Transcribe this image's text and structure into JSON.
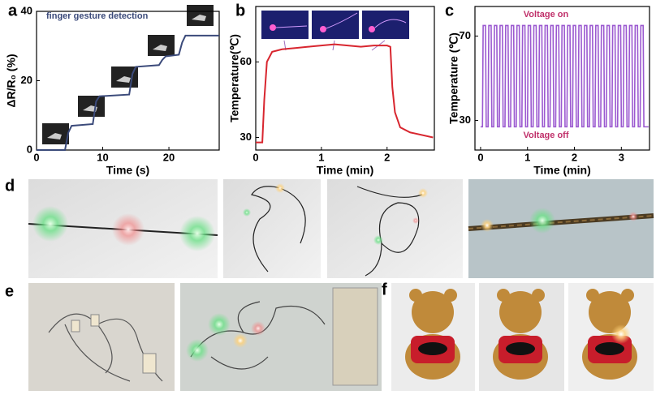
{
  "panel_labels": [
    "a",
    "b",
    "c",
    "d",
    "e",
    "f"
  ],
  "chart_data": [
    {
      "type": "line",
      "xlabel": "Time (s)",
      "ylabel": "ΔR/R₀ (%)",
      "annotation": "finger gesture detection",
      "color": "#3b4a7a",
      "x": [
        0,
        4.3,
        4.8,
        5.3,
        8.5,
        9,
        9.5,
        14,
        14.5,
        15,
        18.5,
        19,
        19.5,
        21.5,
        22,
        22.5,
        27.6
      ],
      "values": [
        0,
        0,
        5,
        7,
        7.5,
        14,
        15.5,
        16,
        22,
        24,
        24.5,
        26,
        27,
        27.5,
        31,
        33,
        33
      ],
      "xlim": [
        0,
        27.6
      ],
      "ylim": [
        0,
        40
      ],
      "xticks": [
        0,
        10,
        20
      ],
      "yticks": [
        0,
        20,
        40
      ]
    },
    {
      "type": "line",
      "xlabel": "Time (min)",
      "ylabel": "Temperature(℃)",
      "color": "#d8262f",
      "x": [
        0,
        0.1,
        0.13,
        0.17,
        0.25,
        0.4,
        0.6,
        0.8,
        1,
        1.2,
        1.4,
        1.6,
        1.8,
        2,
        2.05,
        2.08,
        2.12,
        2.2,
        2.35,
        2.7
      ],
      "values": [
        28,
        28,
        45,
        60,
        64,
        65,
        65.5,
        66,
        66.5,
        67,
        66.5,
        66,
        66.5,
        66.5,
        66,
        50,
        40,
        34,
        32,
        30
      ],
      "xlim": [
        0,
        2.72
      ],
      "ylim": [
        25,
        82
      ],
      "xticks": [
        0,
        1,
        2
      ],
      "yticks": [
        30,
        60
      ]
    },
    {
      "type": "line",
      "xlabel": "Time (min)",
      "ylabel": "Temperature (℃)",
      "annotations": [
        "Voltage on",
        "Voltage off"
      ],
      "color": "#9b59d0",
      "x": [
        0,
        0.04,
        0.055,
        0.105,
        0.12,
        0.16,
        0.175,
        0.225,
        0.24,
        0.28,
        0.295,
        0.345,
        0.36,
        0.4,
        0.415,
        0.465,
        0.48,
        0.52,
        0.535,
        0.585,
        0.6,
        0.64,
        0.655,
        0.705,
        0.72,
        0.76,
        0.775,
        0.825,
        0.84,
        0.88,
        0.895,
        0.945,
        0.96,
        1,
        1.015,
        1.065,
        1.08,
        1.12,
        1.135,
        1.185,
        1.2,
        1.24,
        1.255,
        1.305,
        1.32,
        1.36,
        1.375,
        1.425,
        1.44,
        1.48,
        1.495,
        1.545,
        1.56,
        1.6,
        1.615,
        1.665,
        1.68,
        1.72,
        1.735,
        1.785,
        1.8,
        1.84,
        1.855,
        1.905,
        1.92,
        1.96,
        1.975,
        2.025,
        2.04,
        2.08,
        2.095,
        2.145,
        2.16,
        2.2,
        2.215,
        2.265,
        2.28,
        2.32,
        2.335,
        2.385,
        2.4,
        2.44,
        2.455,
        2.505,
        2.52,
        2.56,
        2.575,
        2.625,
        2.64,
        2.68,
        2.695,
        2.745,
        2.76,
        2.8,
        2.815,
        2.865,
        2.88,
        2.92,
        2.935,
        2.985,
        3,
        3.04,
        3.055,
        3.105,
        3.12,
        3.16,
        3.175,
        3.225,
        3.24,
        3.28,
        3.295,
        3.345,
        3.36,
        3.4,
        3.415,
        3.465,
        3.48,
        3.58
      ],
      "values": [
        27,
        27,
        75,
        75,
        27,
        27,
        75,
        75,
        27,
        27,
        75,
        75,
        27,
        27,
        75,
        75,
        27,
        27,
        75,
        75,
        27,
        27,
        75,
        75,
        27,
        27,
        75,
        75,
        27,
        27,
        75,
        75,
        27,
        27,
        75,
        75,
        27,
        27,
        75,
        75,
        27,
        27,
        75,
        75,
        27,
        27,
        75,
        75,
        27,
        27,
        75,
        75,
        27,
        27,
        75,
        75,
        27,
        27,
        75,
        75,
        27,
        27,
        75,
        75,
        27,
        27,
        75,
        75,
        27,
        27,
        75,
        75,
        27,
        27,
        75,
        75,
        27,
        27,
        75,
        75,
        27,
        27,
        75,
        75,
        27,
        27,
        75,
        75,
        27,
        27,
        75,
        75,
        27,
        27,
        75,
        75,
        27,
        27,
        75,
        75,
        27,
        27,
        75,
        75,
        27,
        27,
        75,
        75,
        27,
        27,
        75,
        75,
        27,
        27,
        75,
        75,
        27,
        27
      ],
      "xlim": [
        -0.12,
        3.6
      ],
      "ylim": [
        16,
        84
      ],
      "xticks": [
        0,
        1,
        2,
        3
      ],
      "yticks": [
        30,
        70
      ]
    }
  ]
}
